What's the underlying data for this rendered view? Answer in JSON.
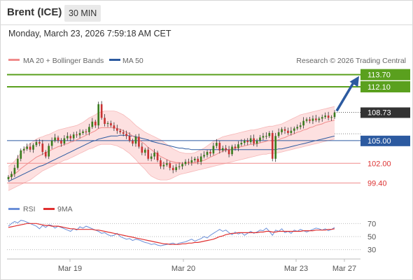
{
  "header": {
    "instrument": "Brent (ICE)",
    "timeframe": "30 MIN"
  },
  "timestamp": "Monday, March 23, 2026 7:59:18 AM CET",
  "legend": {
    "ma20": "MA 20 + Bollinger Bands",
    "ma50": "MA 50",
    "credit": "Research © 2026 Trading Central"
  },
  "rsi_legend": {
    "rsi": "RSI",
    "ma9": "9MA"
  },
  "colors": {
    "resistance": "#5aa01e",
    "current": "#333333",
    "pivot": "#2c5aa0",
    "support": "#f08c8c",
    "support_text": "#dc3232",
    "up_candle": "#3a7d1e",
    "down_candle": "#c83232",
    "ma20": "#f08c8c",
    "ma50": "#2c5aa0",
    "bb_fill": "#fde0e0",
    "rsi_line": "#6a8fd8",
    "rsi_ma": "#e03030",
    "arrow": "#2c5aa0"
  },
  "chart_data": {
    "type": "candlestick",
    "instrument": "Brent (ICE)",
    "timeframe": "30 MIN",
    "price_range": [
      97.5,
      114.5
    ],
    "levels": [
      {
        "value": 113.7,
        "label": "113.70",
        "kind": "resistance"
      },
      {
        "value": 112.1,
        "label": "112.10",
        "kind": "resistance"
      },
      {
        "value": 108.73,
        "label": "108.73",
        "kind": "current"
      },
      {
        "value": 105.0,
        "label": "105.00",
        "kind": "pivot"
      },
      {
        "value": 102.0,
        "label": "102.00",
        "kind": "support"
      },
      {
        "value": 99.4,
        "label": "99.40",
        "kind": "support"
      }
    ],
    "x_ticks": [
      "Mar 19",
      "Mar 20",
      "Mar 23",
      "Mar 27"
    ],
    "close": [
      100.2,
      100.6,
      101.4,
      102.6,
      103.7,
      103.9,
      104.2,
      103.8,
      104.4,
      104.8,
      104.6,
      103.5,
      102.9,
      104.3,
      105.0,
      105.4,
      105.0,
      104.6,
      105.3,
      105.6,
      105.3,
      105.8,
      105.7,
      106.0,
      106.2,
      106.1,
      106.8,
      107.5,
      107.0,
      109.8,
      108.0,
      107.2,
      107.3,
      107.0,
      106.6,
      106.3,
      106.1,
      105.9,
      105.6,
      105.0,
      104.6,
      105.5,
      104.2,
      103.4,
      103.8,
      102.6,
      102.9,
      103.4,
      102.4,
      101.6,
      101.8,
      102.0,
      101.4,
      101.1,
      101.5,
      101.6,
      101.9,
      102.2,
      102.1,
      102.4,
      102.6,
      102.2,
      102.9,
      103.1,
      103.5,
      103.3,
      104.3,
      104.7,
      103.7,
      104.0,
      103.8,
      103.2,
      104.2,
      104.0,
      104.5,
      104.7,
      105.0,
      104.8,
      105.3,
      104.6,
      105.0,
      105.4,
      105.6,
      105.6,
      106.0,
      102.6,
      105.6,
      106.1,
      106.5,
      106.3,
      106.0,
      106.3,
      106.6,
      106.8,
      107.0,
      107.6,
      107.8,
      107.6,
      107.9,
      107.7,
      107.9,
      108.1,
      108.3,
      108.0,
      108.1,
      108.7
    ],
    "ma20": [
      100.1,
      100.3,
      100.6,
      100.9,
      101.3,
      101.6,
      101.9,
      102.2,
      102.5,
      102.8,
      103.0,
      103.2,
      103.4,
      103.6,
      103.8,
      104.0,
      104.2,
      104.3,
      104.5,
      104.6,
      104.8,
      104.9,
      105.1,
      105.3,
      105.5,
      105.7,
      105.9,
      106.1,
      106.3,
      106.6,
      106.7,
      106.7,
      106.7,
      106.7,
      106.7,
      106.6,
      106.5,
      106.3,
      106.1,
      105.9,
      105.6,
      105.4,
      105.1,
      104.8,
      104.5,
      104.1,
      103.8,
      103.5,
      103.2,
      102.9,
      102.7,
      102.5,
      102.3,
      102.2,
      102.1,
      102.1,
      102.0,
      102.0,
      102.0,
      102.1,
      102.1,
      102.2,
      102.3,
      102.4,
      102.6,
      102.8,
      103.0,
      103.2,
      103.4,
      103.6,
      103.7,
      103.8,
      103.9,
      104.0,
      104.1,
      104.2,
      104.3,
      104.4,
      104.5,
      104.5,
      104.6,
      104.7,
      104.8,
      104.9,
      105.0,
      104.9,
      105.0,
      105.1,
      105.3,
      105.4,
      105.6,
      105.8,
      105.9,
      106.1,
      106.2,
      106.4,
      106.5,
      106.7,
      106.8,
      107.0,
      107.1,
      107.2,
      107.4,
      107.5,
      107.6,
      107.7
    ],
    "bb_upper": [
      101.6,
      101.9,
      102.3,
      102.8,
      103.4,
      103.9,
      104.3,
      104.6,
      104.9,
      105.2,
      105.4,
      105.5,
      105.7,
      105.8,
      106.0,
      106.2,
      106.4,
      106.5,
      106.6,
      106.7,
      106.8,
      106.9,
      107.0,
      107.2,
      107.4,
      107.7,
      108.0,
      108.2,
      108.4,
      108.7,
      108.8,
      108.9,
      108.9,
      108.9,
      108.9,
      108.8,
      108.6,
      108.4,
      108.1,
      107.8,
      107.4,
      107.0,
      106.7,
      106.4,
      106.1,
      105.9,
      105.7,
      105.5,
      105.3,
      105.1,
      104.8,
      104.5,
      104.2,
      103.9,
      103.7,
      103.5,
      103.4,
      103.3,
      103.3,
      103.3,
      103.4,
      103.6,
      103.8,
      104.0,
      104.3,
      104.6,
      104.9,
      105.1,
      105.3,
      105.5,
      105.6,
      105.7,
      105.8,
      105.9,
      106.0,
      106.1,
      106.2,
      106.3,
      106.4,
      106.4,
      106.5,
      106.6,
      106.7,
      106.8,
      106.9,
      106.9,
      107.0,
      107.1,
      107.2,
      107.4,
      107.6,
      107.8,
      108.0,
      108.2,
      108.4,
      108.5,
      108.6,
      108.7,
      108.8,
      108.9,
      109.0,
      109.1,
      109.2,
      109.3,
      109.4,
      109.5
    ],
    "bb_lower": [
      98.4,
      98.6,
      98.8,
      99.0,
      99.2,
      99.4,
      99.6,
      99.8,
      100.1,
      100.4,
      100.7,
      101.0,
      101.2,
      101.4,
      101.6,
      101.8,
      102.0,
      102.2,
      102.4,
      102.5,
      102.7,
      102.9,
      103.1,
      103.3,
      103.5,
      103.7,
      103.9,
      104.0,
      104.2,
      104.4,
      104.5,
      104.5,
      104.5,
      104.5,
      104.4,
      104.3,
      104.1,
      103.9,
      103.6,
      103.3,
      102.9,
      102.5,
      102.0,
      101.6,
      101.2,
      100.7,
      100.3,
      100.1,
      99.9,
      99.8,
      99.8,
      99.8,
      99.9,
      100.1,
      100.3,
      100.5,
      100.6,
      100.7,
      100.8,
      100.9,
      101.0,
      101.1,
      101.2,
      101.3,
      101.4,
      101.5,
      101.6,
      101.7,
      101.8,
      101.9,
      102.0,
      102.1,
      102.2,
      102.3,
      102.4,
      102.5,
      102.6,
      102.7,
      102.8,
      102.9,
      103.0,
      103.1,
      103.2,
      103.2,
      103.3,
      103.3,
      103.3,
      103.4,
      103.5,
      103.6,
      103.7,
      103.8,
      103.9,
      104.0,
      104.1,
      104.2,
      104.3,
      104.4,
      104.5,
      104.6,
      104.7,
      104.8,
      104.9,
      105.0,
      105.1,
      105.2
    ],
    "ma50": [
      99.6,
      99.8,
      100.0,
      100.2,
      100.4,
      100.6,
      100.8,
      101.0,
      101.2,
      101.4,
      101.6,
      101.7,
      101.9,
      102.1,
      102.3,
      102.5,
      102.7,
      102.9,
      103.1,
      103.3,
      103.5,
      103.7,
      103.9,
      104.1,
      104.3,
      104.5,
      104.7,
      104.9,
      105.0,
      105.2,
      105.3,
      105.4,
      105.5,
      105.6,
      105.6,
      105.6,
      105.7,
      105.7,
      105.7,
      105.6,
      105.6,
      105.5,
      105.4,
      105.3,
      105.2,
      105.1,
      104.9,
      104.8,
      104.7,
      104.6,
      104.5,
      104.4,
      104.3,
      104.2,
      104.1,
      104.0,
      104.0,
      103.9,
      103.9,
      103.8,
      103.8,
      103.8,
      103.8,
      103.8,
      103.8,
      103.8,
      103.8,
      103.8,
      103.8,
      103.8,
      103.8,
      103.8,
      103.8,
      103.8,
      103.8,
      103.8,
      103.8,
      103.8,
      103.8,
      103.8,
      103.8,
      103.8,
      103.8,
      103.8,
      103.8,
      103.8,
      103.8,
      103.9,
      103.9,
      104.0,
      104.1,
      104.2,
      104.3,
      104.4,
      104.5,
      104.6,
      104.7,
      104.8,
      104.9,
      105.0,
      105.1,
      105.2,
      105.3,
      105.4,
      105.5,
      105.6
    ],
    "projection": {
      "from": 108.73,
      "to": 113.7
    },
    "rsi": {
      "range": [
        20,
        80
      ],
      "ticks": [
        70,
        50,
        30
      ],
      "values": [
        66,
        70,
        73,
        71,
        75,
        74,
        72,
        70,
        68,
        66,
        62,
        67,
        64,
        68,
        67,
        63,
        66,
        64,
        62,
        60,
        58,
        62,
        60,
        65,
        63,
        66,
        64,
        62,
        60,
        58,
        55,
        56,
        53,
        51,
        52,
        55,
        50,
        48,
        46,
        47,
        44,
        46,
        45,
        43,
        41,
        40,
        38,
        39,
        37,
        36,
        37,
        38,
        39,
        40,
        38,
        40,
        41,
        42,
        44,
        46,
        43,
        45,
        47,
        50,
        48,
        52,
        55,
        58,
        61,
        58,
        60,
        56,
        53,
        57,
        54,
        56,
        52,
        55,
        58,
        55,
        57,
        60,
        59,
        63,
        58,
        52,
        60,
        58,
        62,
        56,
        58,
        55,
        60,
        58,
        61,
        59,
        57,
        59,
        61,
        63,
        62,
        60,
        62,
        59,
        61,
        64
      ],
      "ma9": [
        64,
        65,
        66,
        67,
        68,
        69,
        70,
        70,
        70,
        70,
        69,
        68,
        67,
        67,
        66,
        66,
        66,
        65,
        64,
        63,
        62,
        62,
        61,
        61,
        61,
        61,
        61,
        61,
        60,
        60,
        59,
        58,
        57,
        56,
        55,
        54,
        53,
        52,
        51,
        50,
        49,
        48,
        47,
        46,
        45,
        44,
        43,
        42,
        41,
        40,
        39,
        39,
        38,
        38,
        38,
        38,
        39,
        39,
        40,
        40,
        41,
        41,
        42,
        43,
        44,
        45,
        46,
        48,
        50,
        51,
        53,
        54,
        55,
        55,
        56,
        56,
        56,
        56,
        56,
        56,
        56,
        57,
        57,
        58,
        58,
        57,
        57,
        58,
        58,
        58,
        58,
        58,
        58,
        58,
        58,
        59,
        59,
        59,
        59,
        60,
        60,
        60,
        60,
        61,
        61,
        62
      ]
    }
  }
}
